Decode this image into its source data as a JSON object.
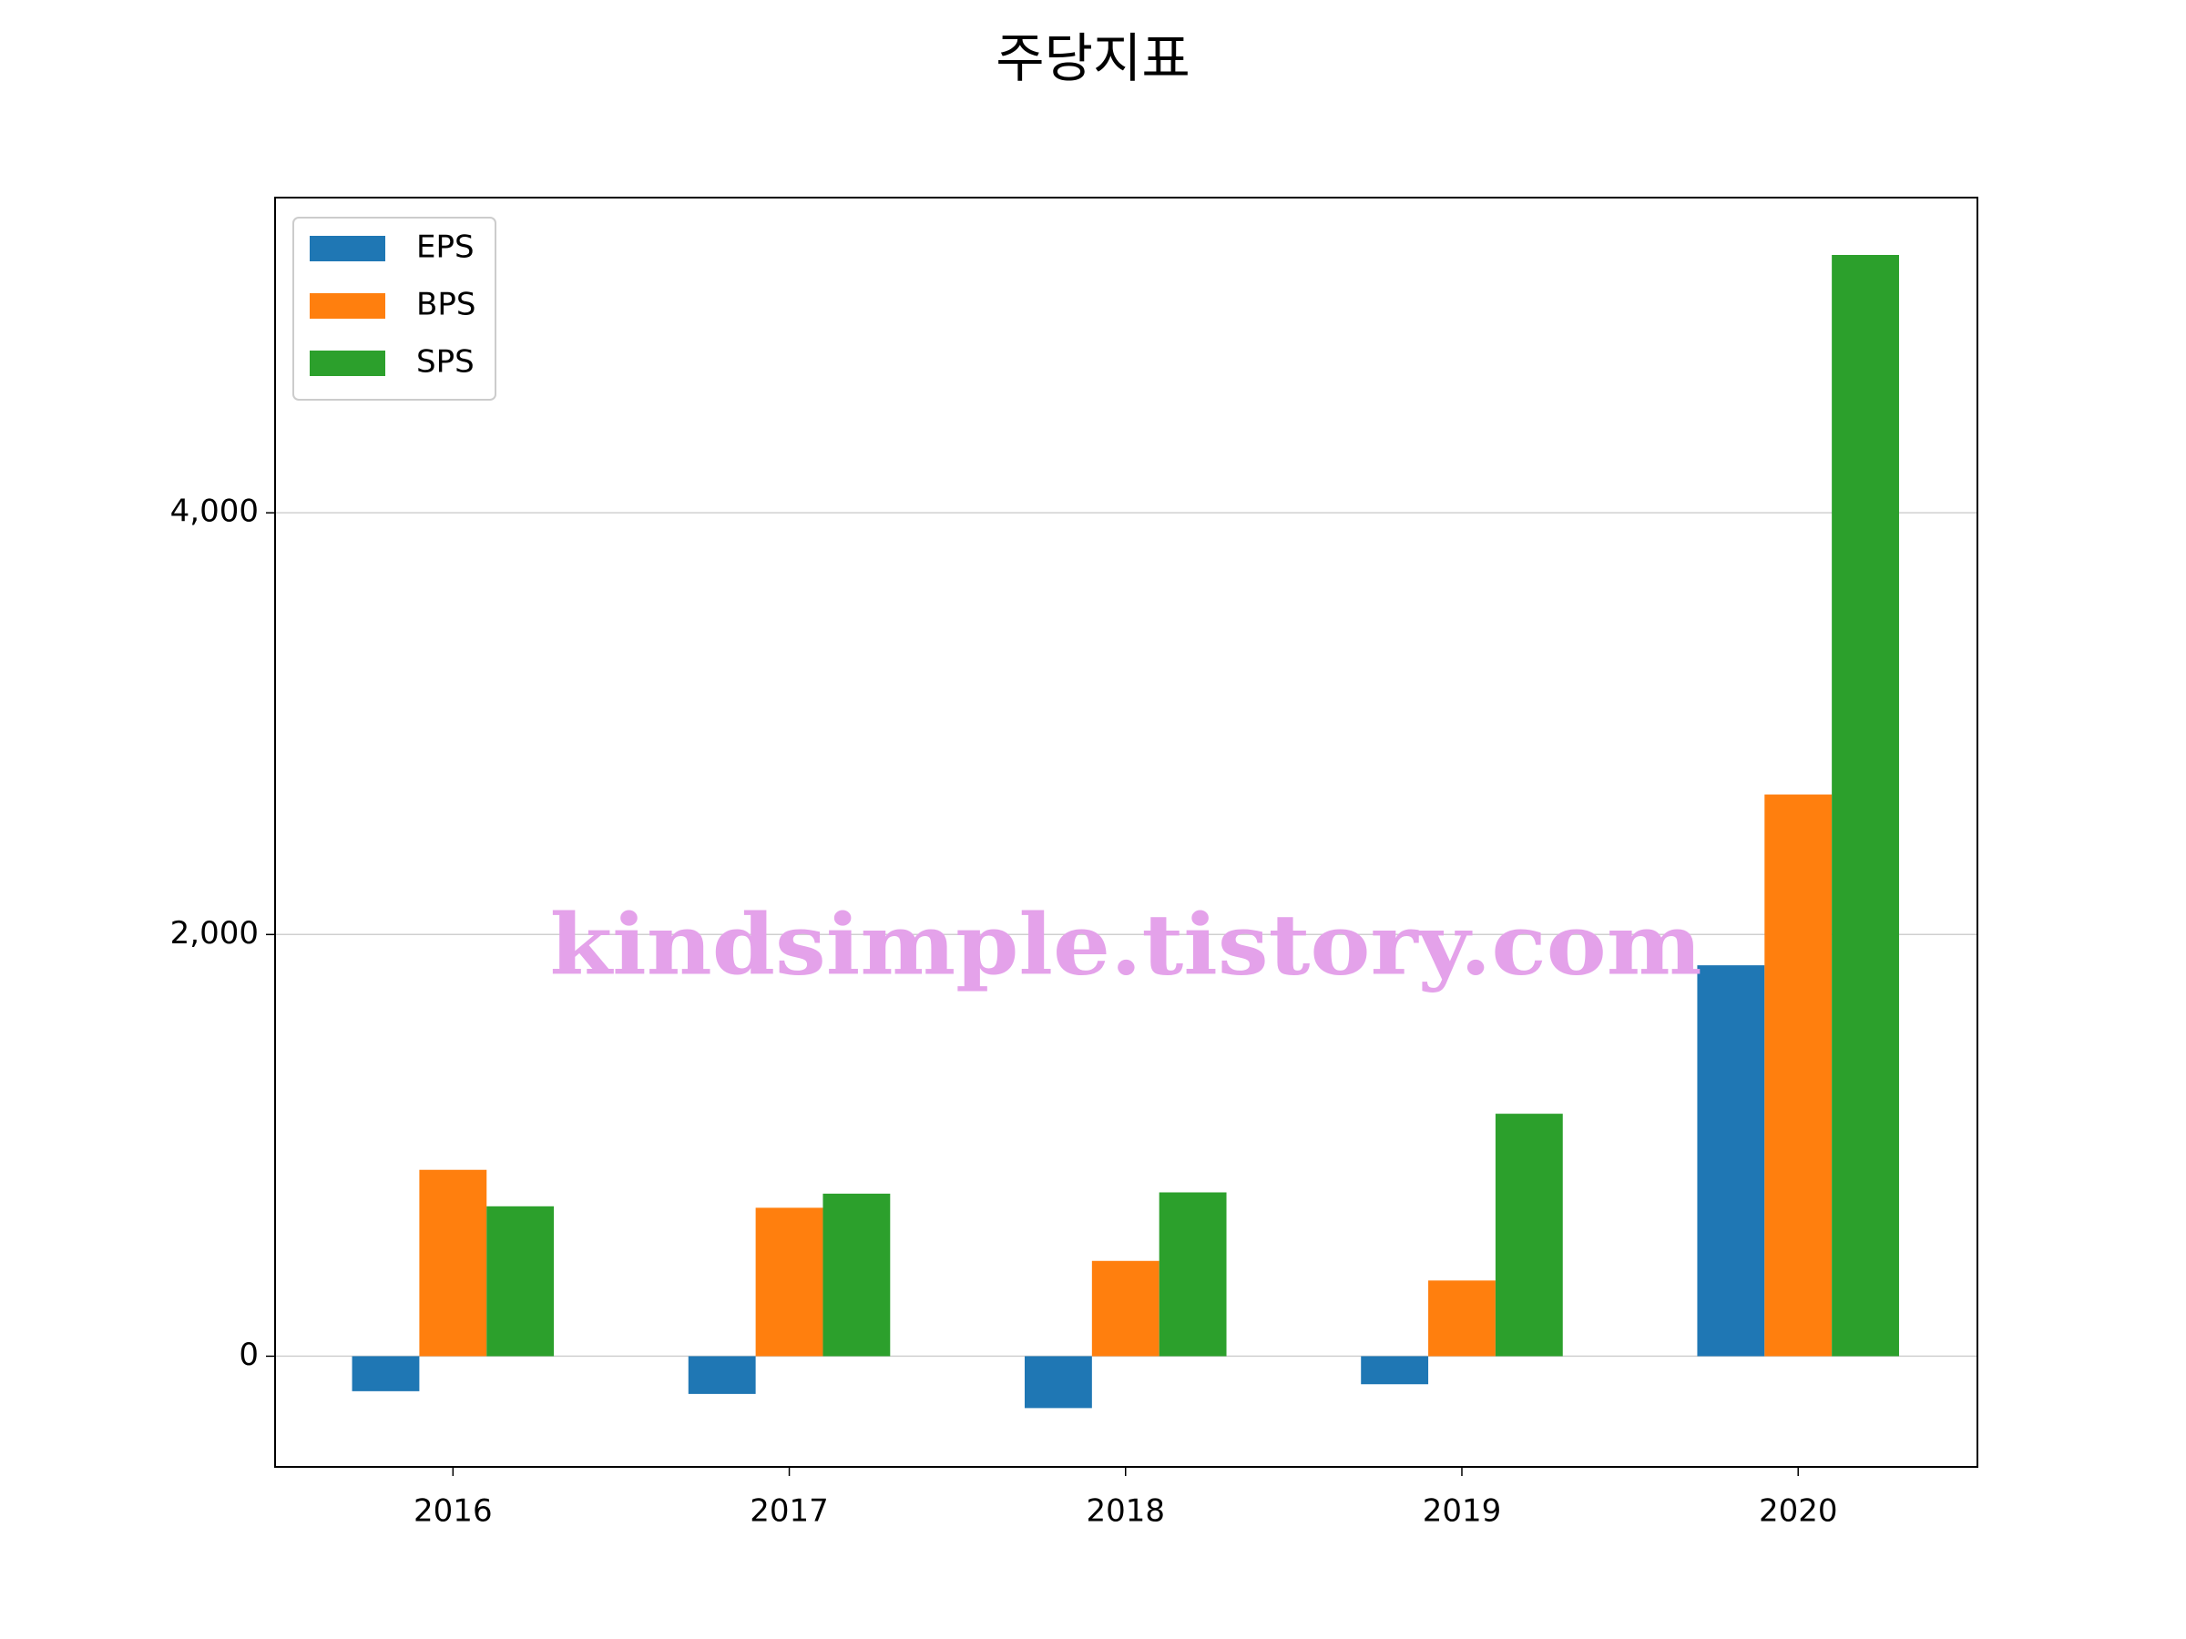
{
  "chart_data": {
    "type": "bar",
    "title": "주당지표",
    "categories": [
      "2016",
      "2017",
      "2018",
      "2019",
      "2020"
    ],
    "series": [
      {
        "name": "EPS",
        "color": "#1f77b4",
        "values": [
          -166,
          -179,
          -246,
          -133,
          1854
        ]
      },
      {
        "name": "BPS",
        "color": "#ff7f0e",
        "values": [
          884,
          704,
          452,
          359,
          2664
        ]
      },
      {
        "name": "SPS",
        "color": "#2ca02c",
        "values": [
          711,
          771,
          777,
          1150,
          5223
        ]
      }
    ],
    "ylim": [
      -525,
      5495
    ],
    "yticks": [
      0,
      {
        "value": 2000,
        "label": "2,000"
      },
      {
        "value": 4000,
        "label": "4,000"
      }
    ],
    "grid": true,
    "legend": "upper left",
    "watermark": "kindsimple.tistory.com"
  }
}
